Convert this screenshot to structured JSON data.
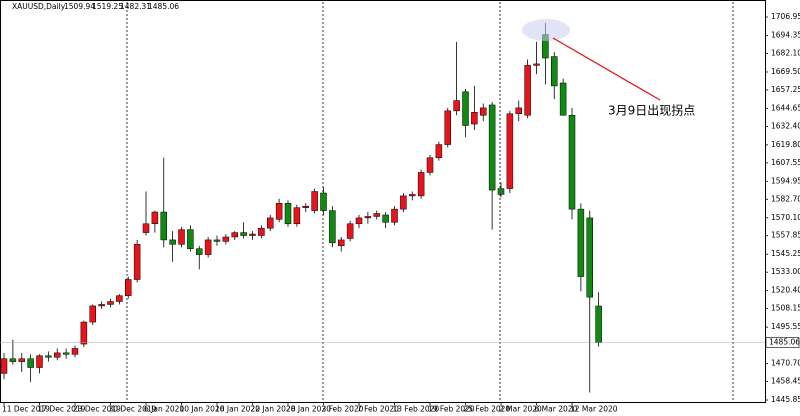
{
  "chart_data": {
    "type": "candlestick",
    "title": "XAUUSD,Daily",
    "annotation": "3月9日出现拐点",
    "categories": [
      "11 Dec 2019",
      null,
      null,
      null,
      "17 Dec 2019",
      null,
      null,
      null,
      "23 Dec 2019",
      null,
      null,
      null,
      "30 Dec 2019",
      null,
      null,
      null,
      "6 Jan 2020",
      null,
      null,
      null,
      "10 Jan 2020",
      null,
      null,
      null,
      "16 Jan 2020",
      null,
      null,
      null,
      "22 Jan 2020",
      null,
      null,
      null,
      "28 Jan 2020",
      null,
      null,
      null,
      "3 Feb 2020",
      null,
      null,
      null,
      "7 Feb 2020",
      null,
      null,
      null,
      "13 Feb 2020",
      null,
      null,
      null,
      "19 Feb 2020",
      null,
      null,
      null,
      "25 Feb 2020",
      null,
      null,
      null,
      "2 Mar 2020",
      null,
      null,
      null,
      "6 Mar 2020",
      null,
      null,
      null,
      "12 Mar 2020",
      null,
      null,
      null
    ],
    "open": [
      1464,
      1474,
      1472,
      1474,
      1468,
      1476,
      1475,
      1478,
      1477,
      1484,
      1499,
      1510,
      1511,
      1513,
      1517,
      1528,
      1560,
      1566,
      1574,
      1555,
      1552,
      1562,
      1549,
      1545,
      1555,
      1554,
      1557,
      1560,
      1558,
      1558,
      1563,
      1569,
      1580,
      1566,
      1577,
      1575,
      1587,
      1575,
      1551,
      1556,
      1566,
      1570,
      1571,
      1572,
      1567,
      1576,
      1585,
      1585,
      1601,
      1611,
      1620,
      1643,
      1656,
      1634,
      1640,
      1647,
      1590,
      1590,
      1641,
      1640,
      1674,
      1695,
      1680,
      1662,
      1640,
      1576,
      1570,
      1509.94
    ],
    "high": [
      1478,
      1487,
      1478,
      1477,
      1477,
      1479,
      1481,
      1481,
      1483,
      1500,
      1511,
      1513,
      1515,
      1518,
      1530,
      1555,
      1588,
      1575,
      1611,
      1561,
      1564,
      1565,
      1551,
      1557,
      1558,
      1559,
      1561,
      1567,
      1561,
      1565,
      1572,
      1583,
      1582,
      1579,
      1580,
      1590,
      1591,
      1578,
      1557,
      1568,
      1572,
      1574,
      1575,
      1574,
      1578,
      1587,
      1588,
      1603,
      1613,
      1622,
      1645,
      1690,
      1658,
      1660,
      1648,
      1649,
      1594,
      1643,
      1650,
      1678,
      1690,
      1703,
      1683,
      1665,
      1645,
      1580,
      1575,
      1519.25
    ],
    "low": [
      1460,
      1470,
      1465,
      1458,
      1464,
      1472,
      1473,
      1474,
      1475,
      1482,
      1497,
      1508,
      1509,
      1511,
      1515,
      1526,
      1558,
      1560,
      1550,
      1540,
      1550,
      1547,
      1535,
      1543,
      1551,
      1552,
      1555,
      1556,
      1555,
      1556,
      1561,
      1567,
      1564,
      1564,
      1574,
      1573,
      1572,
      1550,
      1547,
      1554,
      1563,
      1566,
      1569,
      1563,
      1565,
      1574,
      1582,
      1583,
      1599,
      1609,
      1618,
      1640,
      1625,
      1630,
      1636,
      1562,
      1584,
      1587,
      1636,
      1638,
      1668,
      1661,
      1651,
      1640,
      1569,
      1520,
      1451,
      1482.31
    ],
    "close": [
      1474,
      1472,
      1474,
      1468,
      1476,
      1475,
      1478,
      1477,
      1481,
      1499,
      1510,
      1511,
      1513,
      1517,
      1528,
      1552,
      1566,
      1574,
      1555,
      1552,
      1562,
      1549,
      1545,
      1555,
      1554,
      1557,
      1560,
      1558,
      1559,
      1563,
      1570,
      1580,
      1566,
      1577,
      1578,
      1588,
      1575,
      1553,
      1555,
      1566,
      1570,
      1571,
      1573,
      1567,
      1576,
      1585,
      1586,
      1601,
      1611,
      1620,
      1643,
      1650,
      1633,
      1642,
      1645,
      1589,
      1586,
      1641,
      1645,
      1674,
      1675,
      1679,
      1660,
      1640,
      1576,
      1530,
      1516,
      1485.06
    ],
    "up_color": "#e8141c",
    "down_color": "#118a11",
    "ylim": [
      1444.5,
      1717.2
    ],
    "yticks": [
      1706.95,
      1694.35,
      {
        "value": 1682.1,
        "label": "1682.10"
      },
      {
        "value": 1669.5,
        "label": "1669.50"
      },
      1657.25,
      1644.65,
      {
        "value": 1632.4,
        "label": "1632.40"
      },
      {
        "value": 1619.8,
        "label": "1619.80"
      },
      1607.55,
      1594.95,
      {
        "value": 1582.7,
        "label": "1582.70"
      },
      {
        "value": 1570.1,
        "label": "1570.10"
      },
      1557.85,
      1545.25,
      {
        "value": 1533.0,
        "label": "1533.00"
      },
      {
        "value": 1520.4,
        "label": "1520.40"
      },
      1508.15,
      1495.55,
      {
        "value": 1470.7,
        "label": "1470.70"
      },
      1458.45,
      1445.85
    ]
  }
}
